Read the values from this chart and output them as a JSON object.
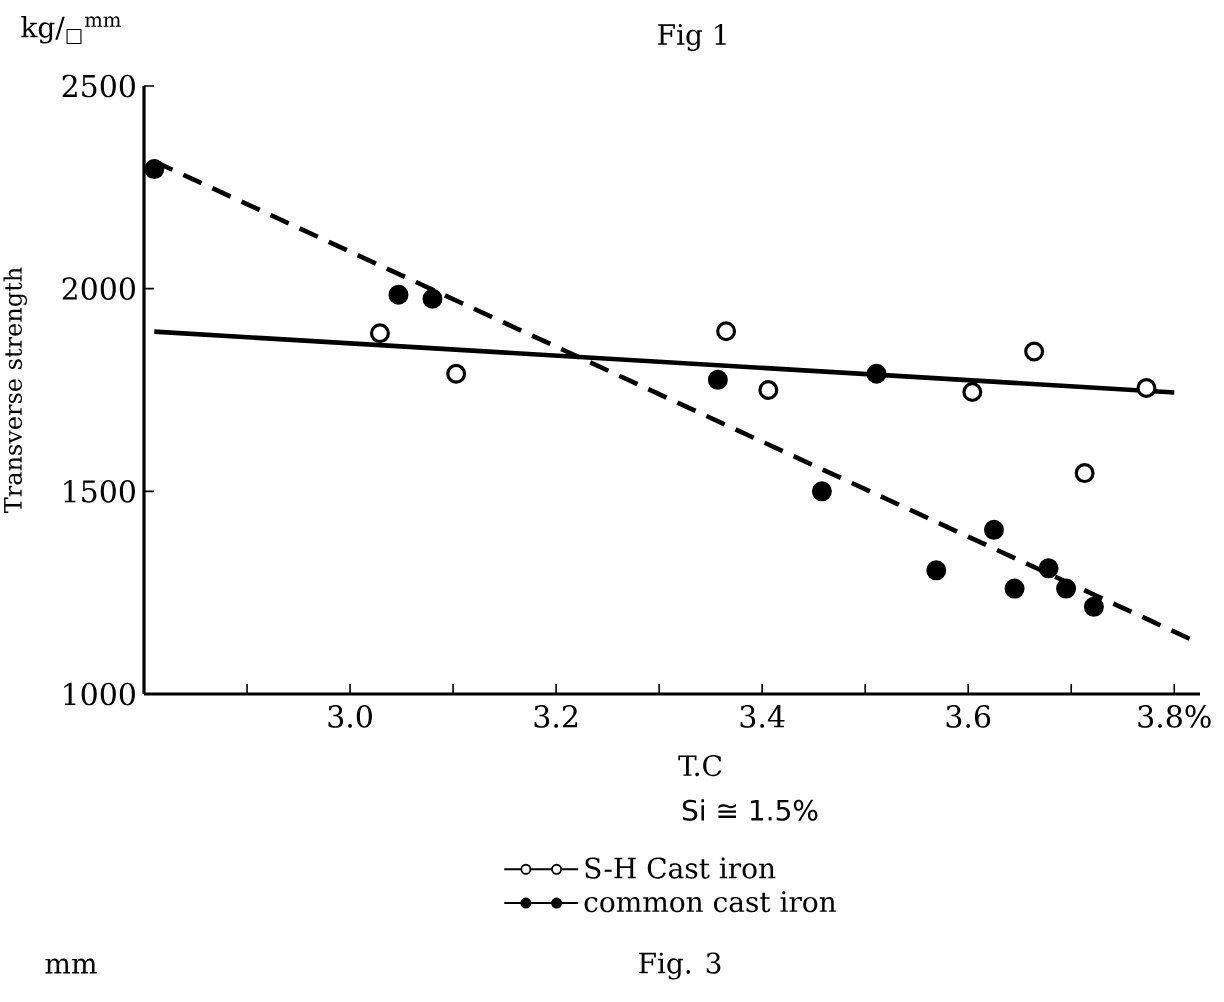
{
  "chart_data": {
    "type": "scatter",
    "title": "Fig 1",
    "xlabel": "T.C",
    "ylabel": "Transverse strength",
    "annotations": [
      "kg/$_{□}$$^{mm}$",
      "Si ≅ 1.5%",
      "mm",
      "Fig. 3"
    ],
    "xlim": [
      2.8,
      3.825
    ],
    "xticks": [
      {
        "value": 2.9,
        "label": null
      },
      {
        "value": 3.0,
        "label": "3.0"
      },
      {
        "value": 3.1,
        "label": null
      },
      {
        "value": 3.2,
        "label": "3.2"
      },
      {
        "value": 3.3,
        "label": null
      },
      {
        "value": 3.4,
        "label": "3.4"
      },
      {
        "value": 3.5,
        "label": null
      },
      {
        "value": 3.6,
        "label": "3.6"
      },
      {
        "value": 3.7,
        "label": null
      },
      {
        "value": 3.8,
        "label": "3.8%"
      }
    ],
    "ylim": [
      1000,
      2500
    ],
    "yticks": [
      1000,
      1500,
      2000,
      2500
    ],
    "legend": "bottom",
    "series": [
      {
        "type": "line",
        "line_style": "solid",
        "color": "#000000",
        "x": [
          2.81,
          3.8
        ],
        "values": [
          1894,
          1744
        ]
      },
      {
        "type": "line",
        "line_style": "dashed",
        "color": "#000000",
        "x": [
          2.81,
          3.816
        ],
        "values": [
          2314,
          1135
        ]
      },
      {
        "name": "S-H Cast iron",
        "type": "scatter",
        "marker": "circle",
        "color": "#ffffff",
        "x": [
          3.029,
          3.103,
          3.365,
          3.406,
          3.604,
          3.664,
          3.713,
          3.773
        ],
        "values": [
          1890,
          1790,
          1895,
          1750,
          1745,
          1845,
          1545,
          1755
        ]
      },
      {
        "name": "common cast iron",
        "type": "scatter",
        "marker": "circle",
        "color": "#000000",
        "x": [
          2.81,
          3.047,
          3.08,
          3.357,
          3.511,
          3.458,
          3.625,
          3.569,
          3.645,
          3.678,
          3.695,
          3.722
        ],
        "values": [
          2295,
          1985,
          1975,
          1775,
          1790,
          1500,
          1405,
          1305,
          1260,
          1310,
          1260,
          1215
        ]
      }
    ]
  }
}
